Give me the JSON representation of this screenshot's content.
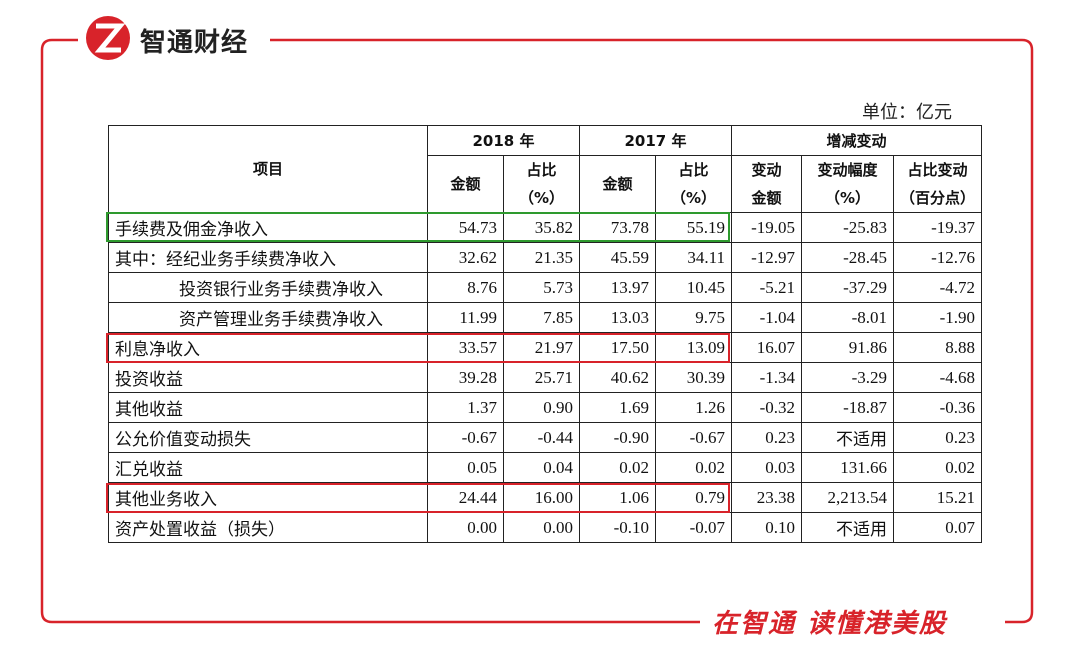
{
  "header": {
    "brand": "智通财经"
  },
  "unit": "单位：亿元",
  "table": {
    "columns_top": [
      "项目",
      "2018 年",
      "2017 年",
      "增减变动"
    ],
    "columns_sub": [
      [
        "金额"
      ],
      [
        "占比",
        "（%）"
      ],
      [
        "金额"
      ],
      [
        "占比",
        "（%）"
      ],
      [
        "变动",
        "金额"
      ],
      [
        "变动幅度",
        "（%）"
      ],
      [
        "占比变动",
        "（百分点）"
      ]
    ],
    "rows": [
      [
        "手续费及佣金净收入",
        "54.73",
        "35.82",
        "73.78",
        "55.19",
        "-19.05",
        "-25.83",
        "-19.37"
      ],
      [
        "其中：经纪业务手续费净收入",
        "32.62",
        "21.35",
        "45.59",
        "34.11",
        "-12.97",
        "-28.45",
        "-12.76"
      ],
      [
        "投资银行业务手续费净收入",
        "8.76",
        "5.73",
        "13.97",
        "10.45",
        "-5.21",
        "-37.29",
        "-4.72"
      ],
      [
        "资产管理业务手续费净收入",
        "11.99",
        "7.85",
        "13.03",
        "9.75",
        "-1.04",
        "-8.01",
        "-1.90"
      ],
      [
        "利息净收入",
        "33.57",
        "21.97",
        "17.50",
        "13.09",
        "16.07",
        "91.86",
        "8.88"
      ],
      [
        "投资收益",
        "39.28",
        "25.71",
        "40.62",
        "30.39",
        "-1.34",
        "-3.29",
        "-4.68"
      ],
      [
        "其他收益",
        "1.37",
        "0.90",
        "1.69",
        "1.26",
        "-0.32",
        "-18.87",
        "-0.36"
      ],
      [
        "公允价值变动损失",
        "-0.67",
        "-0.44",
        "-0.90",
        "-0.67",
        "0.23",
        "不适用",
        "0.23"
      ],
      [
        "汇兑收益",
        "0.05",
        "0.04",
        "0.02",
        "0.02",
        "0.03",
        "131.66",
        "0.02"
      ],
      [
        "其他业务收入",
        "24.44",
        "16.00",
        "1.06",
        "0.79",
        "23.38",
        "2,213.54",
        "15.21"
      ],
      [
        "资产处置收益（损失）",
        "0.00",
        "0.00",
        "-0.10",
        "-0.07",
        "0.10",
        "不适用",
        "0.07"
      ]
    ]
  },
  "footer": {
    "slogan": "在智通 读懂港美股"
  }
}
